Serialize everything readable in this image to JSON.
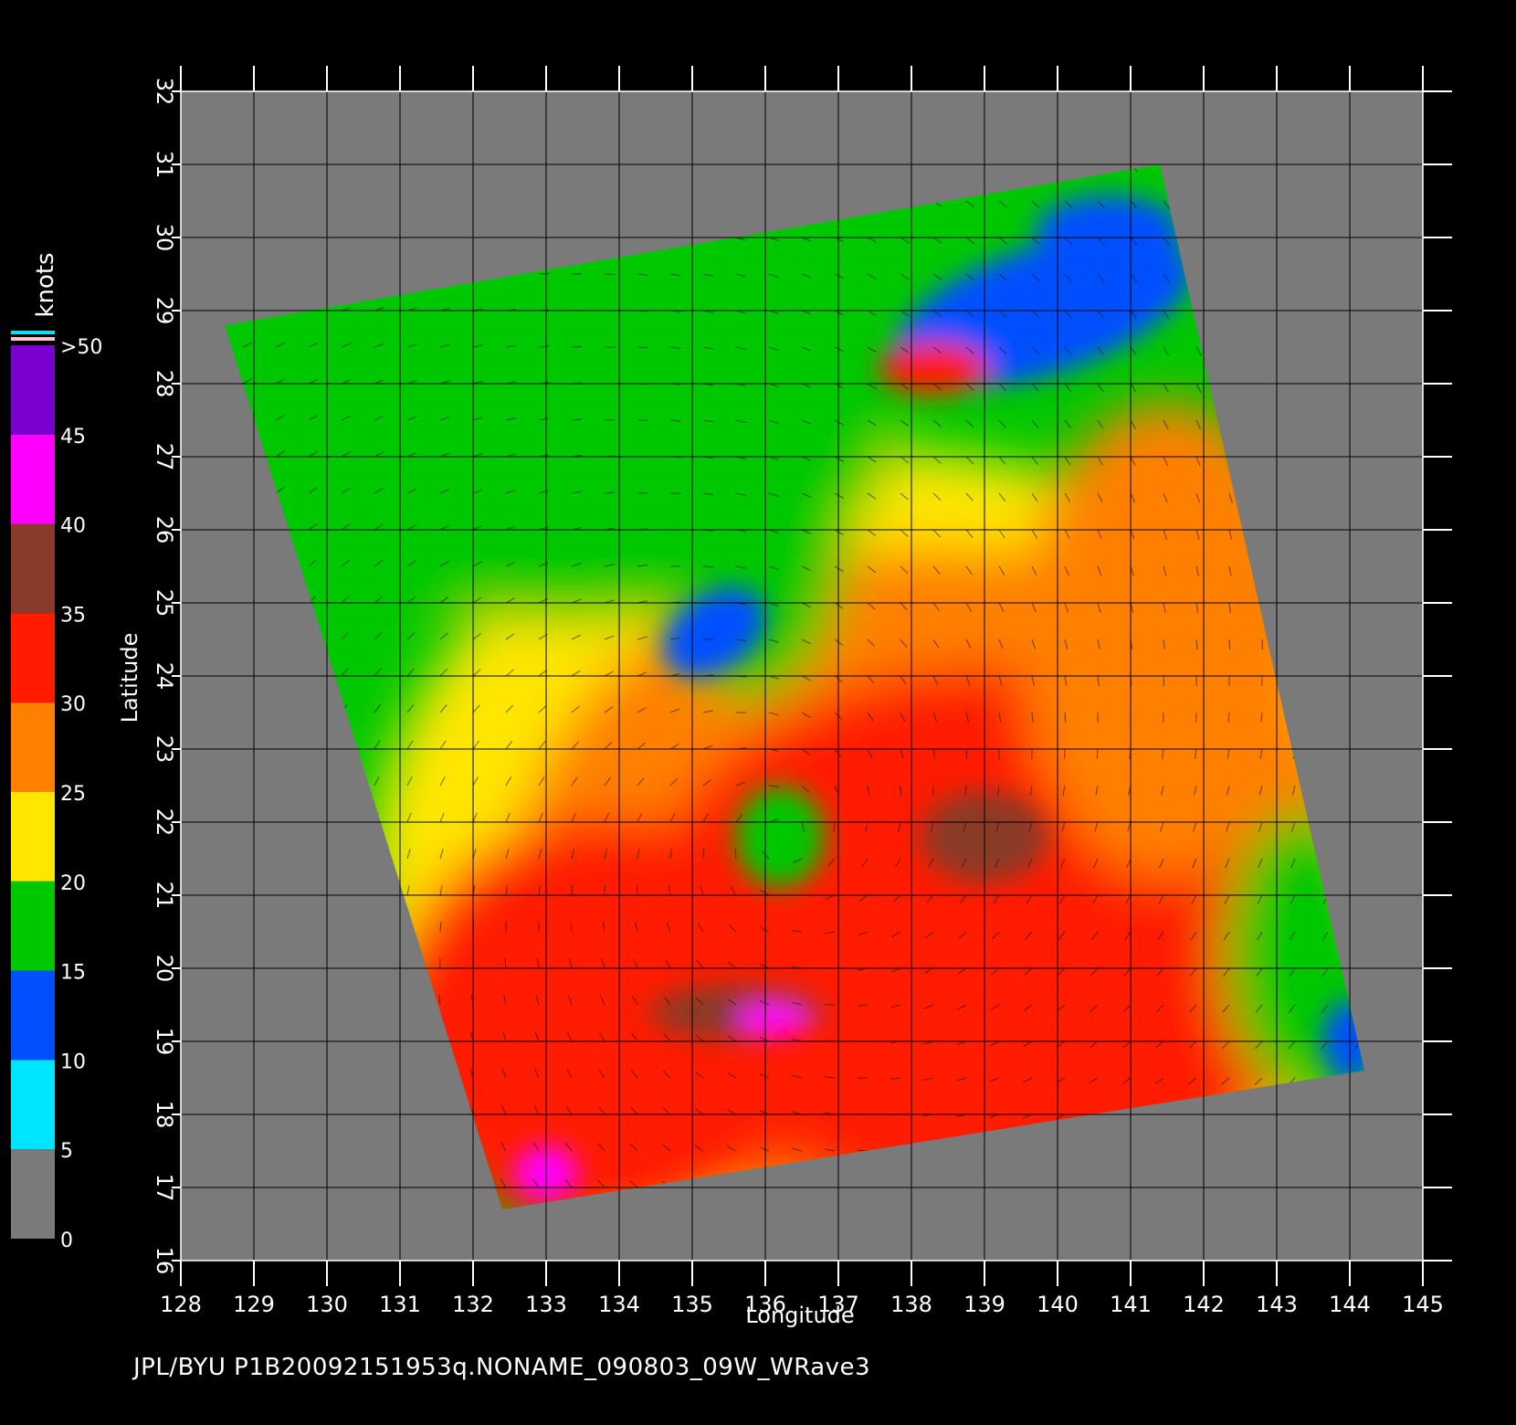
{
  "chart_data": {
    "type": "heatmap",
    "title": "",
    "xlabel": "Longitude",
    "ylabel": "Latitude",
    "xlim": [
      128,
      145
    ],
    "ylim": [
      16,
      32
    ],
    "x_ticks": [
      "128",
      "129",
      "130",
      "131",
      "132",
      "133",
      "134",
      "135",
      "136",
      "137",
      "138",
      "139",
      "140",
      "141",
      "142",
      "143",
      "144",
      "145"
    ],
    "y_ticks": [
      "16",
      "17",
      "18",
      "19",
      "20",
      "21",
      "22",
      "23",
      "24",
      "25",
      "26",
      "27",
      "28",
      "29",
      "30",
      "31",
      "32"
    ],
    "grid": true,
    "variable": "wind speed",
    "colorbar": {
      "unit_label": "knots",
      "range": [
        0,
        50
      ],
      "tick_labels": [
        {
          "value": 0,
          "label": "0"
        },
        {
          "value": 5,
          "label": "5"
        },
        {
          "value": 10,
          "label": "10"
        },
        {
          "value": 15,
          "label": "15"
        },
        {
          "value": 20,
          "label": "20"
        },
        {
          "value": 25,
          "label": "25"
        },
        {
          "value": 30,
          "label": "30"
        },
        {
          "value": 35,
          "label": "35"
        },
        {
          "value": 40,
          "label": "40"
        },
        {
          "value": 45,
          "label": "45"
        },
        {
          "value": 50,
          "label": ">50"
        }
      ],
      "colors": {
        "0-5": "#7a7a7a",
        "5-10": "#00e5ff",
        "10-15": "#0050ff",
        "15-20": "#00c800",
        "20-25": "#ffe600",
        "25-30": "#ff8000",
        "30-35": "#ff1a00",
        "35-40": "#8a3a28",
        "40-45": "#ff00ff",
        "45-50": "#7a00d0"
      }
    },
    "swath_corners_lonlat": [
      [
        128.6,
        28.8
      ],
      [
        141.4,
        31.0
      ],
      [
        144.2,
        18.6
      ],
      [
        132.4,
        16.7
      ]
    ],
    "storm_center_lonlat": [
      136.2,
      21.8
    ],
    "annotations": []
  },
  "footer": {
    "text": "JPL/BYU  P1B20092151953q.NONAME_090803_09W_WRave3"
  },
  "colors": {
    "background": "#000000",
    "no_data": "#7a7a7a",
    "grid_line": "#000000",
    "axis": "#ffffff"
  }
}
